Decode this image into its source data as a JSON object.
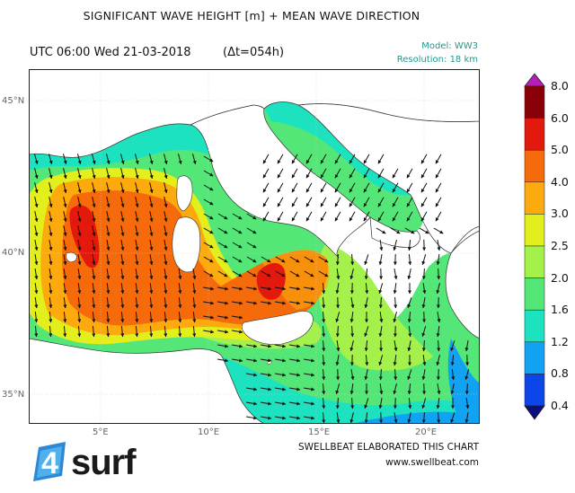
{
  "title": "SIGNIFICANT WAVE HEIGHT [m] + MEAN WAVE DIRECTION",
  "datetime": "UTC 06:00 Wed 21-03-2018",
  "delta": "(Δt=054h)",
  "model": "Model: WW3",
  "resolution": "Resolution: 18 km",
  "lat_labels": [
    "45°N",
    "40°N",
    "35°N"
  ],
  "lon_labels": [
    "5°E",
    "10°E",
    "15°E",
    "20°E"
  ],
  "credit_line1": "SWELLBEAT ELABORATED THIS CHART",
  "credit_line2": "www.swellbeat.com",
  "logo_number": "4",
  "logo_text": "surf",
  "colorbar": {
    "ticks": [
      "8.0",
      "6.0",
      "5.0",
      "4.0",
      "3.0",
      "2.5",
      "2.0",
      "1.6",
      "1.2",
      "0.8",
      "0.4"
    ],
    "colors": [
      "#8a0008",
      "#e2190c",
      "#f56a0a",
      "#fcaa0e",
      "#e3ef1c",
      "#a3f14a",
      "#54e676",
      "#1ce2c0",
      "#12a2f2",
      "#0d46e8"
    ],
    "over_color": "#b51fb7",
    "under_color": "#09107d"
  },
  "colors": {
    "land": "#ffffff",
    "accent_teal": "#1f9a8f"
  }
}
